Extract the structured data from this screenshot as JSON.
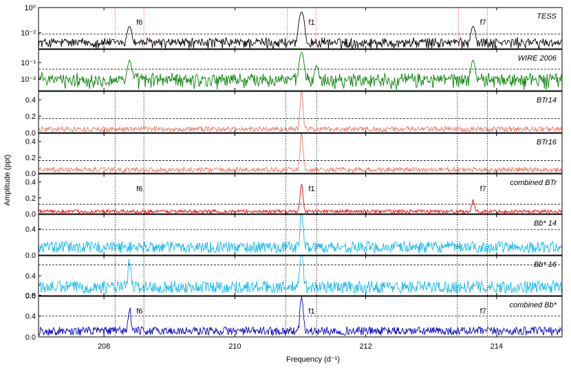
{
  "chart_data": {
    "type": "line",
    "xlabel": "Frequency",
    "xlabel_unit": "(d⁻¹)",
    "ylabel": "Amplitude (ppt)",
    "xlim": [
      207.0,
      215.0
    ],
    "xticks": [
      208,
      210,
      212,
      214
    ],
    "xtick_labels": [
      "208",
      "210",
      "212",
      "214"
    ],
    "frequencies": {
      "f6": 208.39,
      "f1": 211.02,
      "f7": 213.64,
      "tess_alias_lines": [
        208.17,
        208.61,
        210.8,
        211.24,
        213.42,
        213.86
      ],
      "brite_alias_lines": [
        208.17,
        208.61,
        210.78,
        211.25,
        213.4,
        213.86
      ]
    },
    "panels": [
      {
        "name": "TESS",
        "scale": "log",
        "ylim": [
          0.0005,
          1.0
        ],
        "yticks": [
          0.01,
          1
        ],
        "ytick_labels": [
          "10⁻²",
          "10⁰"
        ],
        "threshold": 0.0075,
        "color": "#000000",
        "noise_level": 0.002,
        "peaks": [
          {
            "f": 211.02,
            "a": 0.45
          },
          {
            "f": 208.39,
            "a": 0.03
          },
          {
            "f": 213.64,
            "a": 0.03
          }
        ],
        "annotations": [
          "f6",
          "f1",
          "f7"
        ]
      },
      {
        "name": "WIRE 2006",
        "scale": "log",
        "ylim": [
          0.002,
          0.6
        ],
        "yticks": [
          0.01,
          0.1
        ],
        "ytick_labels": [
          "10⁻²",
          "10⁻¹"
        ],
        "threshold": 0.04,
        "color": "#008000",
        "noise_level": 0.012,
        "peaks": [
          {
            "f": 211.02,
            "a": 0.4
          },
          {
            "f": 208.39,
            "a": 0.12
          },
          {
            "f": 213.64,
            "a": 0.12
          },
          {
            "f": 211.25,
            "a": 0.05
          }
        ],
        "annotations": []
      },
      {
        "name": "BTr14",
        "scale": "linear",
        "ylim": [
          0.0,
          0.5
        ],
        "yticks": [
          0.0,
          0.2,
          0.4
        ],
        "ytick_labels": [
          "0.0",
          "0.2",
          "0.4"
        ],
        "threshold": 0.17,
        "color": "#f4735f",
        "noise_level": 0.05,
        "peaks": [
          {
            "f": 211.02,
            "a": 0.48
          }
        ],
        "annotations": []
      },
      {
        "name": "BTr16",
        "scale": "linear",
        "ylim": [
          0.0,
          0.5
        ],
        "yticks": [
          0.0,
          0.2,
          0.4
        ],
        "ytick_labels": [
          "0.0",
          "0.2",
          "0.4"
        ],
        "threshold": 0.16,
        "color": "#f4735f",
        "noise_level": 0.05,
        "peaks": [
          {
            "f": 211.02,
            "a": 0.45
          }
        ],
        "annotations": []
      },
      {
        "name": "combined BTr",
        "scale": "linear",
        "ylim": [
          0.0,
          0.5
        ],
        "yticks": [
          0.0,
          0.2,
          0.4
        ],
        "ytick_labels": [
          "0.0",
          "0.2",
          "0.4"
        ],
        "threshold": 0.12,
        "color": "#ee0000",
        "noise_level": 0.035,
        "peaks": [
          {
            "f": 211.02,
            "a": 0.34
          },
          {
            "f": 213.64,
            "a": 0.13
          }
        ],
        "annotations": [
          "f6",
          "f1",
          "f7"
        ]
      },
      {
        "name": "Bb* 14",
        "scale": "linear",
        "ylim": [
          0.0,
          0.62
        ],
        "yticks": [
          0.0,
          0.4
        ],
        "ytick_labels": [
          "0.0",
          "0.4"
        ],
        "threshold": 0.39,
        "color": "#10b8ee",
        "noise_level": 0.14,
        "peaks": [
          {
            "f": 211.02,
            "a": 0.58
          }
        ],
        "annotations": []
      },
      {
        "name": "Bb* 16",
        "scale": "linear",
        "ylim": [
          0.0,
          0.8
        ],
        "yticks": [
          0.0,
          0.4
        ],
        "ytick_labels": [
          "0.0",
          "0.4"
        ],
        "threshold": 0.62,
        "color": "#10b8ee",
        "noise_level": 0.2,
        "peaks": [
          {
            "f": 211.02,
            "a": 0.78
          },
          {
            "f": 208.39,
            "a": 0.5
          }
        ],
        "annotations": []
      },
      {
        "name": "combined Bb*",
        "scale": "linear",
        "ylim": [
          0.0,
          0.78
        ],
        "yticks": [
          0.0,
          0.4,
          0.8
        ],
        "ytick_labels": [
          "0.0",
          "0.4",
          "0.8"
        ],
        "threshold": 0.4,
        "color": "#0000cc",
        "noise_level": 0.13,
        "peaks": [
          {
            "f": 211.02,
            "a": 0.72
          },
          {
            "f": 208.39,
            "a": 0.43
          }
        ],
        "annotations": [
          "f6",
          "f1",
          "f7"
        ]
      }
    ]
  }
}
